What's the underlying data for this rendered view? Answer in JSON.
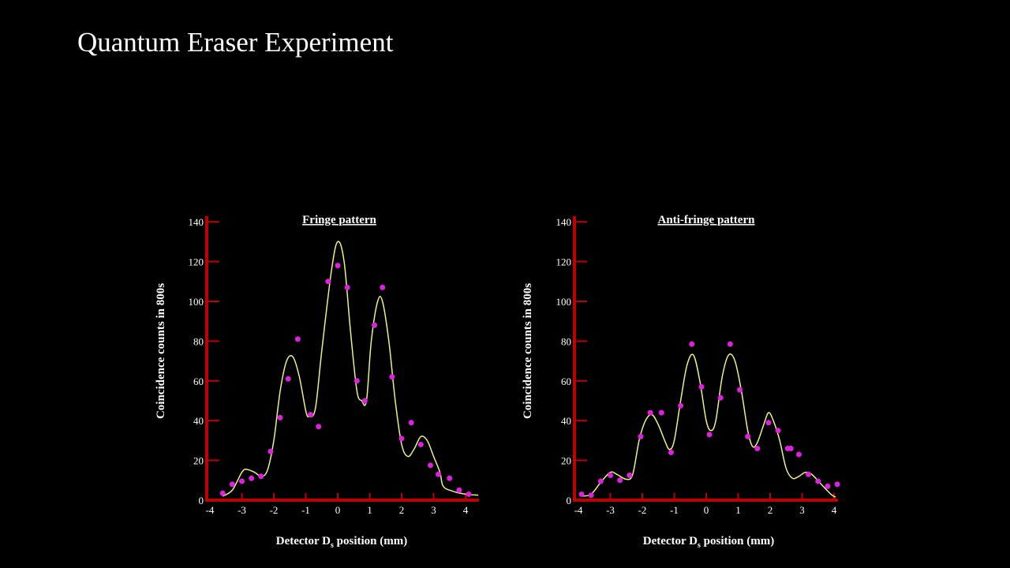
{
  "slide": {
    "title": "Quantum Eraser Experiment"
  },
  "colors": {
    "axis": "#c00000",
    "points": "#e020e0",
    "curve": "#f0f080",
    "background": "#000000"
  },
  "chart_data": [
    {
      "type": "scatter",
      "title": "Fringe pattern",
      "xlabel": "Detector D",
      "xlabel_sub": "s",
      "xlabel_suffix": " position (mm)",
      "ylabel": "Coincidence counts in 800s",
      "xlim": [
        -4,
        4.4
      ],
      "ylim": [
        0,
        140
      ],
      "xticks": [
        -4,
        -3,
        -2,
        -1,
        0,
        1,
        2,
        3,
        4
      ],
      "yticks": [
        0,
        20,
        40,
        60,
        80,
        100,
        120,
        140
      ],
      "points": [
        [
          -3.6,
          3.5
        ],
        [
          -3.3,
          8
        ],
        [
          -3.0,
          9.5
        ],
        [
          -2.7,
          11
        ],
        [
          -2.4,
          12
        ],
        [
          -2.1,
          24.5
        ],
        [
          -1.8,
          41.5
        ],
        [
          -1.55,
          61
        ],
        [
          -1.25,
          81
        ],
        [
          -0.85,
          43
        ],
        [
          -0.6,
          37
        ],
        [
          -0.3,
          110
        ],
        [
          0,
          118
        ],
        [
          0.3,
          107
        ],
        [
          0.6,
          60
        ],
        [
          0.85,
          50
        ],
        [
          1.15,
          88
        ],
        [
          1.4,
          107
        ],
        [
          1.7,
          62
        ],
        [
          2.0,
          31
        ],
        [
          2.3,
          39
        ],
        [
          2.6,
          28
        ],
        [
          2.9,
          17.5
        ],
        [
          3.15,
          13
        ],
        [
          3.5,
          11
        ],
        [
          3.8,
          5
        ],
        [
          4.1,
          3
        ]
      ],
      "fit_curve": [
        [
          -3.6,
          2
        ],
        [
          -3.3,
          5
        ],
        [
          -3.0,
          14
        ],
        [
          -2.85,
          15.5
        ],
        [
          -2.6,
          14
        ],
        [
          -2.4,
          12
        ],
        [
          -2.2,
          15
        ],
        [
          -2.0,
          30
        ],
        [
          -1.8,
          55
        ],
        [
          -1.6,
          70
        ],
        [
          -1.4,
          72
        ],
        [
          -1.2,
          62
        ],
        [
          -1.0,
          45
        ],
        [
          -0.9,
          42
        ],
        [
          -0.7,
          46
        ],
        [
          -0.5,
          75
        ],
        [
          -0.2,
          115
        ],
        [
          0,
          130
        ],
        [
          0.2,
          120
        ],
        [
          0.4,
          85
        ],
        [
          0.6,
          55
        ],
        [
          0.75,
          50
        ],
        [
          0.9,
          50
        ],
        [
          1.05,
          80
        ],
        [
          1.25,
          100
        ],
        [
          1.4,
          100
        ],
        [
          1.6,
          80
        ],
        [
          1.8,
          50
        ],
        [
          2.0,
          28
        ],
        [
          2.2,
          22
        ],
        [
          2.4,
          26
        ],
        [
          2.6,
          32
        ],
        [
          2.8,
          30
        ],
        [
          3.0,
          22
        ],
        [
          3.2,
          14
        ],
        [
          3.3,
          7
        ],
        [
          3.6,
          4.5
        ],
        [
          4.0,
          3
        ],
        [
          4.4,
          2.5
        ]
      ]
    },
    {
      "type": "scatter",
      "title": "Anti-fringe pattern",
      "xlabel": "Detector D",
      "xlabel_sub": "s",
      "xlabel_suffix": " position (mm)",
      "ylabel": "Coincidence counts in 800s",
      "xlim": [
        -4,
        4.2
      ],
      "ylim": [
        0,
        140
      ],
      "xticks": [
        -4,
        -3,
        -2,
        -1,
        0,
        1,
        2,
        3,
        4
      ],
      "yticks": [
        0,
        20,
        40,
        60,
        80,
        100,
        120,
        140
      ],
      "points": [
        [
          -3.9,
          3
        ],
        [
          -3.6,
          2.5
        ],
        [
          -3.3,
          9.5
        ],
        [
          -3.0,
          12.5
        ],
        [
          -2.7,
          10
        ],
        [
          -2.4,
          12.5
        ],
        [
          -2.05,
          32
        ],
        [
          -1.75,
          44
        ],
        [
          -1.4,
          44
        ],
        [
          -1.1,
          24
        ],
        [
          -0.8,
          47.5
        ],
        [
          -0.45,
          78.5
        ],
        [
          -0.15,
          57
        ],
        [
          0.1,
          33
        ],
        [
          0.45,
          51.5
        ],
        [
          0.75,
          78.5
        ],
        [
          1.05,
          55.5
        ],
        [
          1.3,
          32
        ],
        [
          1.6,
          26
        ],
        [
          1.95,
          39
        ],
        [
          2.25,
          35
        ],
        [
          2.55,
          26
        ],
        [
          2.65,
          26
        ],
        [
          2.9,
          23
        ],
        [
          3.2,
          13
        ],
        [
          3.5,
          9.5
        ],
        [
          3.8,
          7
        ],
        [
          4.1,
          8
        ]
      ],
      "fit_curve": [
        [
          -3.9,
          2
        ],
        [
          -3.6,
          3
        ],
        [
          -3.3,
          9
        ],
        [
          -3.0,
          14
        ],
        [
          -2.8,
          13
        ],
        [
          -2.5,
          10.5
        ],
        [
          -2.3,
          13
        ],
        [
          -2.1,
          30
        ],
        [
          -1.9,
          40
        ],
        [
          -1.7,
          43
        ],
        [
          -1.5,
          38
        ],
        [
          -1.3,
          30
        ],
        [
          -1.15,
          25.5
        ],
        [
          -1.0,
          30
        ],
        [
          -0.8,
          50
        ],
        [
          -0.6,
          68
        ],
        [
          -0.4,
          73
        ],
        [
          -0.2,
          60
        ],
        [
          0,
          40
        ],
        [
          0.15,
          35
        ],
        [
          0.3,
          40
        ],
        [
          0.5,
          62
        ],
        [
          0.7,
          73
        ],
        [
          0.9,
          70
        ],
        [
          1.1,
          55
        ],
        [
          1.3,
          35
        ],
        [
          1.45,
          27
        ],
        [
          1.6,
          29
        ],
        [
          1.8,
          38
        ],
        [
          1.95,
          44
        ],
        [
          2.1,
          40
        ],
        [
          2.3,
          30
        ],
        [
          2.5,
          16
        ],
        [
          2.7,
          11
        ],
        [
          2.9,
          12
        ],
        [
          3.1,
          14
        ],
        [
          3.3,
          13
        ],
        [
          3.6,
          8
        ],
        [
          3.9,
          3
        ],
        [
          4.05,
          1.5
        ]
      ]
    }
  ]
}
